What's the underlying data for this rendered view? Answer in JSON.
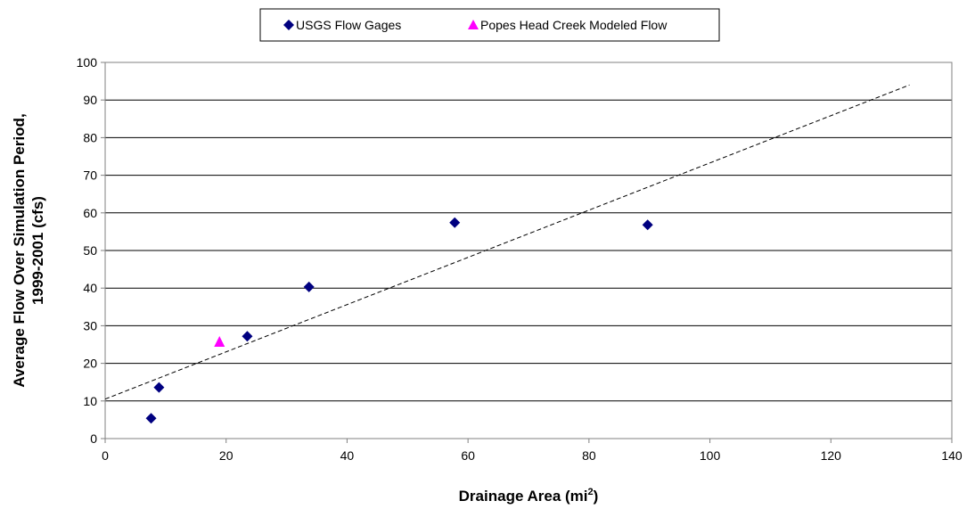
{
  "chart_data": {
    "type": "scatter",
    "title": "",
    "xlabel": "Drainage Area (mi",
    "xlabel_sup": "2",
    "xlabel_tail": ")",
    "ylabel_line1": "Average Flow Over Simulation Period,",
    "ylabel_line2": "1999-2001 (cfs)",
    "xlim": [
      0,
      140
    ],
    "ylim": [
      0,
      100
    ],
    "x_ticks": [
      "0",
      "20",
      "40",
      "60",
      "80",
      "100",
      "120",
      "140"
    ],
    "y_ticks": [
      "0",
      "10",
      "20",
      "30",
      "40",
      "50",
      "60",
      "70",
      "80",
      "90",
      "100"
    ],
    "grid": "horizontal",
    "legend_position": "top-center",
    "series": [
      {
        "name": "USGS Flow Gages",
        "marker": "diamond",
        "color": "#000080",
        "points": [
          {
            "x": 7.6,
            "y": 5.4
          },
          {
            "x": 8.9,
            "y": 13.6
          },
          {
            "x": 23.5,
            "y": 27.2
          },
          {
            "x": 33.7,
            "y": 40.3
          },
          {
            "x": 57.8,
            "y": 57.4
          },
          {
            "x": 89.7,
            "y": 56.8
          }
        ]
      },
      {
        "name": "Popes Head Creek Modeled Flow",
        "marker": "triangle",
        "color": "#ff00ff",
        "points": [
          {
            "x": 18.9,
            "y": 25.6
          }
        ]
      }
    ],
    "trendline": {
      "style": "dashed",
      "color": "#000000",
      "from": {
        "x": 0,
        "y": 10.5
      },
      "to": {
        "x": 133,
        "y": 94
      }
    }
  }
}
